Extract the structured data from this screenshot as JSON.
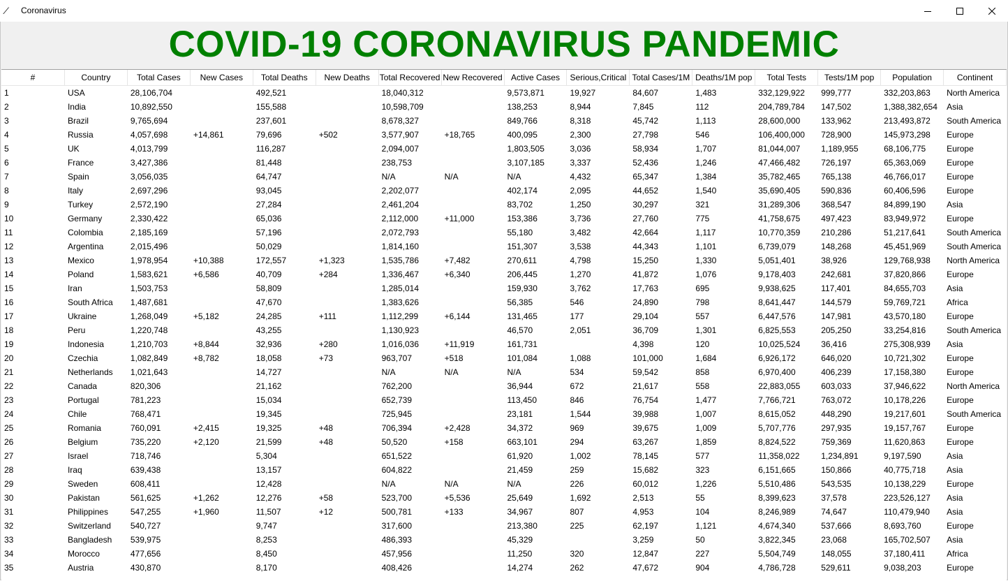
{
  "window": {
    "title": "Coronavirus"
  },
  "heading": "COVID-19 CORONAVIRUS PANDEMIC",
  "columns": [
    "#",
    "Country",
    "Total Cases",
    "New Cases",
    "Total Deaths",
    "New Deaths",
    "Total Recovered",
    "New Recovered",
    "Active Cases",
    "Serious,Critical",
    "Total Cases/1M",
    "Deaths/1M pop",
    "Total Tests",
    "Tests/1M pop",
    "Population",
    "Continent"
  ],
  "rows": [
    [
      "1",
      "USA",
      "28,106,704",
      "",
      "492,521",
      "",
      "18,040,312",
      "",
      "9,573,871",
      "19,927",
      "84,607",
      "1,483",
      "332,129,922",
      "999,777",
      "332,203,863",
      "North America"
    ],
    [
      "2",
      "India",
      "10,892,550",
      "",
      "155,588",
      "",
      "10,598,709",
      "",
      "138,253",
      "8,944",
      "7,845",
      "112",
      "204,789,784",
      "147,502",
      "1,388,382,654",
      "Asia"
    ],
    [
      "3",
      "Brazil",
      "9,765,694",
      "",
      "237,601",
      "",
      "8,678,327",
      "",
      "849,766",
      "8,318",
      "45,742",
      "1,113",
      "28,600,000",
      "133,962",
      "213,493,872",
      "South America"
    ],
    [
      "4",
      "Russia",
      "4,057,698",
      "+14,861",
      "79,696",
      "+502",
      "3,577,907",
      "+18,765",
      "400,095",
      "2,300",
      "27,798",
      "546",
      "106,400,000",
      "728,900",
      "145,973,298",
      "Europe"
    ],
    [
      "5",
      "UK",
      "4,013,799",
      "",
      "116,287",
      "",
      "2,094,007",
      "",
      "1,803,505",
      "3,036",
      "58,934",
      "1,707",
      "81,044,007",
      "1,189,955",
      "68,106,775",
      "Europe"
    ],
    [
      "6",
      "France",
      "3,427,386",
      "",
      "81,448",
      "",
      "238,753",
      "",
      "3,107,185",
      "3,337",
      "52,436",
      "1,246",
      "47,466,482",
      "726,197",
      "65,363,069",
      "Europe"
    ],
    [
      "7",
      "Spain",
      "3,056,035",
      "",
      "64,747",
      "",
      "N/A",
      "N/A",
      "N/A",
      "4,432",
      "65,347",
      "1,384",
      "35,782,465",
      "765,138",
      "46,766,017",
      "Europe"
    ],
    [
      "8",
      "Italy",
      "2,697,296",
      "",
      "93,045",
      "",
      "2,202,077",
      "",
      "402,174",
      "2,095",
      "44,652",
      "1,540",
      "35,690,405",
      "590,836",
      "60,406,596",
      "Europe"
    ],
    [
      "9",
      "Turkey",
      "2,572,190",
      "",
      "27,284",
      "",
      "2,461,204",
      "",
      "83,702",
      "1,250",
      "30,297",
      "321",
      "31,289,306",
      "368,547",
      "84,899,190",
      "Asia"
    ],
    [
      "10",
      "Germany",
      "2,330,422",
      "",
      "65,036",
      "",
      "2,112,000",
      "+11,000",
      "153,386",
      "3,736",
      "27,760",
      "775",
      "41,758,675",
      "497,423",
      "83,949,972",
      "Europe"
    ],
    [
      "11",
      "Colombia",
      "2,185,169",
      "",
      "57,196",
      "",
      "2,072,793",
      "",
      "55,180",
      "3,482",
      "42,664",
      "1,117",
      "10,770,359",
      "210,286",
      "51,217,641",
      "South America"
    ],
    [
      "12",
      "Argentina",
      "2,015,496",
      "",
      "50,029",
      "",
      "1,814,160",
      "",
      "151,307",
      "3,538",
      "44,343",
      "1,101",
      "6,739,079",
      "148,268",
      "45,451,969",
      "South America"
    ],
    [
      "13",
      "Mexico",
      "1,978,954",
      "+10,388",
      "172,557",
      "+1,323",
      "1,535,786",
      "+7,482",
      "270,611",
      "4,798",
      "15,250",
      "1,330",
      "5,051,401",
      "38,926",
      "129,768,938",
      "North America"
    ],
    [
      "14",
      "Poland",
      "1,583,621",
      "+6,586",
      "40,709",
      "+284",
      "1,336,467",
      "+6,340",
      "206,445",
      "1,270",
      "41,872",
      "1,076",
      "9,178,403",
      "242,681",
      "37,820,866",
      "Europe"
    ],
    [
      "15",
      "Iran",
      "1,503,753",
      "",
      "58,809",
      "",
      "1,285,014",
      "",
      "159,930",
      "3,762",
      "17,763",
      "695",
      "9,938,625",
      "117,401",
      "84,655,703",
      "Asia"
    ],
    [
      "16",
      "South Africa",
      "1,487,681",
      "",
      "47,670",
      "",
      "1,383,626",
      "",
      "56,385",
      "546",
      "24,890",
      "798",
      "8,641,447",
      "144,579",
      "59,769,721",
      "Africa"
    ],
    [
      "17",
      "Ukraine",
      "1,268,049",
      "+5,182",
      "24,285",
      "+111",
      "1,112,299",
      "+6,144",
      "131,465",
      "177",
      "29,104",
      "557",
      "6,447,576",
      "147,981",
      "43,570,180",
      "Europe"
    ],
    [
      "18",
      "Peru",
      "1,220,748",
      "",
      "43,255",
      "",
      "1,130,923",
      "",
      "46,570",
      "2,051",
      "36,709",
      "1,301",
      "6,825,553",
      "205,250",
      "33,254,816",
      "South America"
    ],
    [
      "19",
      "Indonesia",
      "1,210,703",
      "+8,844",
      "32,936",
      "+280",
      "1,016,036",
      "+11,919",
      "161,731",
      "",
      "4,398",
      "120",
      "10,025,524",
      "36,416",
      "275,308,939",
      "Asia"
    ],
    [
      "20",
      "Czechia",
      "1,082,849",
      "+8,782",
      "18,058",
      "+73",
      "963,707",
      "+518",
      "101,084",
      "1,088",
      "101,000",
      "1,684",
      "6,926,172",
      "646,020",
      "10,721,302",
      "Europe"
    ],
    [
      "21",
      "Netherlands",
      "1,021,643",
      "",
      "14,727",
      "",
      "N/A",
      "N/A",
      "N/A",
      "534",
      "59,542",
      "858",
      "6,970,400",
      "406,239",
      "17,158,380",
      "Europe"
    ],
    [
      "22",
      "Canada",
      "820,306",
      "",
      "21,162",
      "",
      "762,200",
      "",
      "36,944",
      "672",
      "21,617",
      "558",
      "22,883,055",
      "603,033",
      "37,946,622",
      "North America"
    ],
    [
      "23",
      "Portugal",
      "781,223",
      "",
      "15,034",
      "",
      "652,739",
      "",
      "113,450",
      "846",
      "76,754",
      "1,477",
      "7,766,721",
      "763,072",
      "10,178,226",
      "Europe"
    ],
    [
      "24",
      "Chile",
      "768,471",
      "",
      "19,345",
      "",
      "725,945",
      "",
      "23,181",
      "1,544",
      "39,988",
      "1,007",
      "8,615,052",
      "448,290",
      "19,217,601",
      "South America"
    ],
    [
      "25",
      "Romania",
      "760,091",
      "+2,415",
      "19,325",
      "+48",
      "706,394",
      "+2,428",
      "34,372",
      "969",
      "39,675",
      "1,009",
      "5,707,776",
      "297,935",
      "19,157,767",
      "Europe"
    ],
    [
      "26",
      "Belgium",
      "735,220",
      "+2,120",
      "21,599",
      "+48",
      "50,520",
      "+158",
      "663,101",
      "294",
      "63,267",
      "1,859",
      "8,824,522",
      "759,369",
      "11,620,863",
      "Europe"
    ],
    [
      "27",
      "Israel",
      "718,746",
      "",
      "5,304",
      "",
      "651,522",
      "",
      "61,920",
      "1,002",
      "78,145",
      "577",
      "11,358,022",
      "1,234,891",
      "9,197,590",
      "Asia"
    ],
    [
      "28",
      "Iraq",
      "639,438",
      "",
      "13,157",
      "",
      "604,822",
      "",
      "21,459",
      "259",
      "15,682",
      "323",
      "6,151,665",
      "150,866",
      "40,775,718",
      "Asia"
    ],
    [
      "29",
      "Sweden",
      "608,411",
      "",
      "12,428",
      "",
      "N/A",
      "N/A",
      "N/A",
      "226",
      "60,012",
      "1,226",
      "5,510,486",
      "543,535",
      "10,138,229",
      "Europe"
    ],
    [
      "30",
      "Pakistan",
      "561,625",
      "+1,262",
      "12,276",
      "+58",
      "523,700",
      "+5,536",
      "25,649",
      "1,692",
      "2,513",
      "55",
      "8,399,623",
      "37,578",
      "223,526,127",
      "Asia"
    ],
    [
      "31",
      "Philippines",
      "547,255",
      "+1,960",
      "11,507",
      "+12",
      "500,781",
      "+133",
      "34,967",
      "807",
      "4,953",
      "104",
      "8,246,989",
      "74,647",
      "110,479,940",
      "Asia"
    ],
    [
      "32",
      "Switzerland",
      "540,727",
      "",
      "9,747",
      "",
      "317,600",
      "",
      "213,380",
      "225",
      "62,197",
      "1,121",
      "4,674,340",
      "537,666",
      "8,693,760",
      "Europe"
    ],
    [
      "33",
      "Bangladesh",
      "539,975",
      "",
      "8,253",
      "",
      "486,393",
      "",
      "45,329",
      "",
      "3,259",
      "50",
      "3,822,345",
      "23,068",
      "165,702,507",
      "Asia"
    ],
    [
      "34",
      "Morocco",
      "477,656",
      "",
      "8,450",
      "",
      "457,956",
      "",
      "11,250",
      "320",
      "12,847",
      "227",
      "5,504,749",
      "148,055",
      "37,180,411",
      "Africa"
    ],
    [
      "35",
      "Austria",
      "430,870",
      "",
      "8,170",
      "",
      "408,426",
      "",
      "14,274",
      "262",
      "47,672",
      "904",
      "4,786,728",
      "529,611",
      "9,038,203",
      "Europe"
    ]
  ]
}
